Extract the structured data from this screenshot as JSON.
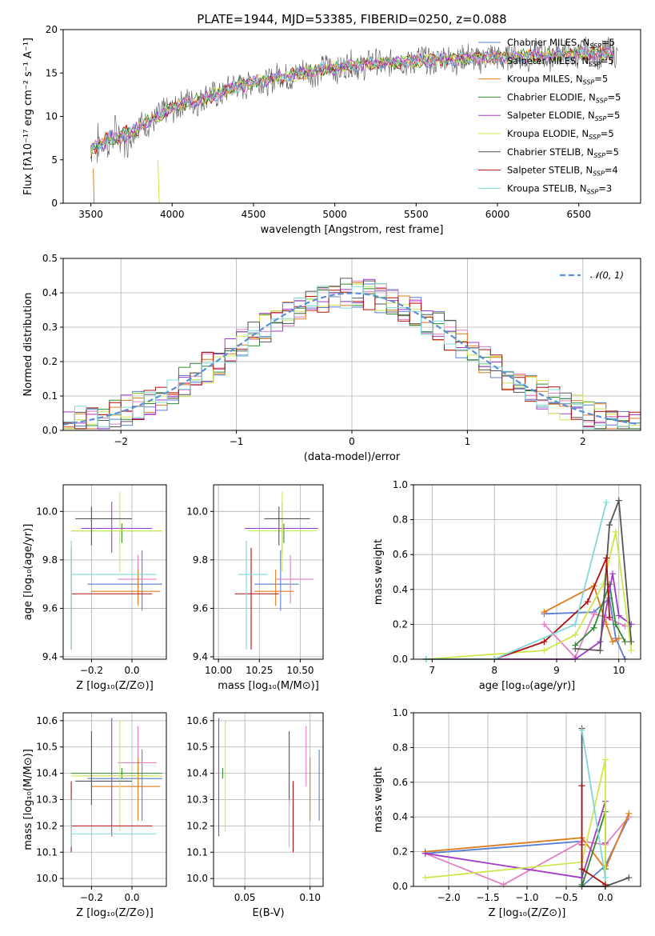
{
  "title": "PLATE=1944, MJD=53385, FIBERID=0250, z=0.088",
  "colors": {
    "Chabrier MILES": "#5a7fd1",
    "Salpeter MILES": "#e57fc4",
    "Kroupa MILES": "#e07b1b",
    "Chabrier ELODIE": "#2e8b2e",
    "Salpeter ELODIE": "#a23bc8",
    "Kroupa ELODIE": "#cde84a",
    "Chabrier STELIB": "#555555",
    "Salpeter STELIB": "#b01010",
    "Kroupa STELIB": "#7fd8d8"
  },
  "legend_entries": [
    {
      "model": "Chabrier MILES",
      "label_prefix": "Chabrier MILES, N",
      "sub": "SSP",
      "suffix": "=5"
    },
    {
      "model": "Salpeter MILES",
      "label_prefix": "Salpeter MILES, N",
      "sub": "SSP",
      "suffix": "=5"
    },
    {
      "model": "Kroupa MILES",
      "label_prefix": "Kroupa MILES, N",
      "sub": "SSP",
      "suffix": "=5"
    },
    {
      "model": "Chabrier ELODIE",
      "label_prefix": "Chabrier ELODIE, N",
      "sub": "SSP",
      "suffix": "=5"
    },
    {
      "model": "Salpeter ELODIE",
      "label_prefix": "Salpeter ELODIE, N",
      "sub": "SSP",
      "suffix": "=5"
    },
    {
      "model": "Kroupa ELODIE",
      "label_prefix": "Kroupa ELODIE, N",
      "sub": "SSP",
      "suffix": "=5"
    },
    {
      "model": "Chabrier STELIB",
      "label_prefix": "Chabrier STELIB, N",
      "sub": "SSP",
      "suffix": "=5"
    },
    {
      "model": "Salpeter STELIB",
      "label_prefix": "Salpeter STELIB, N",
      "sub": "SSP",
      "suffix": "=4"
    },
    {
      "model": "Kroupa STELIB",
      "label_prefix": "Kroupa STELIB, N",
      "sub": "SSP",
      "suffix": "=3"
    }
  ],
  "chart_data": [
    {
      "id": "spectrum",
      "type": "line",
      "xlabel": "wavelength [Angstrom, rest frame]",
      "ylabel": "Flux [fλ10⁻¹⁷ erg cm⁻² s⁻¹ A⁻¹]",
      "xlim": [
        3330,
        6880
      ],
      "ylim": [
        0,
        20
      ],
      "xticks": [
        3500,
        4000,
        4500,
        5000,
        5500,
        6000,
        6500
      ],
      "yticks": [
        0,
        5,
        10,
        15,
        20
      ],
      "legend": "top-right",
      "continuum": [
        [
          3500,
          6.2
        ],
        [
          3560,
          7.0
        ],
        [
          3620,
          7.3
        ],
        [
          3700,
          7.8
        ],
        [
          3780,
          8.5
        ],
        [
          3850,
          9.4
        ],
        [
          3930,
          10.0
        ],
        [
          3990,
          10.9
        ],
        [
          4100,
          11.6
        ],
        [
          4250,
          12.4
        ],
        [
          4400,
          13.5
        ],
        [
          4600,
          14.3
        ],
        [
          4800,
          15.0
        ],
        [
          5000,
          15.6
        ],
        [
          5200,
          16.0
        ],
        [
          5400,
          16.3
        ],
        [
          5700,
          16.6
        ],
        [
          6000,
          16.8
        ],
        [
          6300,
          17.0
        ],
        [
          6600,
          17.3
        ],
        [
          6700,
          17.2
        ]
      ]
    },
    {
      "id": "residual-histogram",
      "type": "histogram",
      "xlabel": "(data-model)/error",
      "ylabel": "Normed distribution",
      "xlim": [
        -2.5,
        2.5
      ],
      "ylim": [
        0,
        0.5
      ],
      "xticks": [
        -2,
        -1,
        0,
        1,
        2
      ],
      "yticks": [
        0.0,
        0.1,
        0.2,
        0.3,
        0.4,
        0.5
      ],
      "bin_width": 0.1,
      "reference": {
        "label": "𝒩(0, 1)",
        "mean": 0,
        "sigma": 1
      },
      "legend": "top-right"
    },
    {
      "id": "age-vs-Z",
      "type": "errorbar",
      "xlabel": "Z [log₁₀(Z/Z⊙)]",
      "ylabel": "age  [log₁₀(age/yr)]",
      "xlim": [
        -0.34,
        0.17
      ],
      "ylim": [
        9.39,
        10.11
      ],
      "xticks": [
        -0.2,
        0.0
      ],
      "yticks": [
        9.4,
        9.6,
        9.8,
        10.0
      ]
    },
    {
      "id": "age-vs-mass",
      "type": "errorbar",
      "xlabel": "mass [log₁₀(M/M⊙)]",
      "ylabel": "",
      "xlim": [
        9.97,
        10.64
      ],
      "ylim": [
        9.39,
        10.11
      ],
      "xticks": [
        10.0,
        10.25,
        10.5
      ],
      "yticks": [
        9.4,
        9.6,
        9.8,
        10.0
      ]
    },
    {
      "id": "mass-weight-vs-age",
      "type": "line",
      "xlabel": "age  [log₁₀(age/yr)]",
      "ylabel": "mass weight",
      "xlim": [
        6.7,
        10.35
      ],
      "ylim": [
        0,
        1
      ],
      "xticks": [
        7,
        8,
        9,
        10
      ],
      "yticks": [
        0.0,
        0.2,
        0.4,
        0.6,
        0.8,
        1.0
      ],
      "series": [
        {
          "model": "Chabrier MILES",
          "points": [
            [
              8.8,
              0.26
            ],
            [
              9.6,
              0.27
            ],
            [
              9.85,
              0.35
            ],
            [
              9.95,
              0.12
            ],
            [
              10.1,
              0.0
            ]
          ]
        },
        {
          "model": "Salpeter MILES",
          "points": [
            [
              8.8,
              0.2
            ],
            [
              9.3,
              0.01
            ],
            [
              9.6,
              0.26
            ],
            [
              9.8,
              0.24
            ],
            [
              10.1,
              0.19
            ]
          ]
        },
        {
          "model": "Kroupa MILES",
          "points": [
            [
              8.8,
              0.27
            ],
            [
              9.6,
              0.42
            ],
            [
              9.8,
              0.2
            ],
            [
              9.9,
              0.1
            ],
            [
              10.0,
              0.12
            ]
          ]
        },
        {
          "model": "Chabrier ELODIE",
          "points": [
            [
              9.3,
              0.08
            ],
            [
              9.6,
              0.18
            ],
            [
              9.85,
              0.43
            ],
            [
              9.95,
              0.2
            ],
            [
              10.1,
              0.1
            ]
          ]
        },
        {
          "model": "Salpeter ELODIE",
          "points": [
            [
              6.9,
              0.0
            ],
            [
              9.3,
              0.0
            ],
            [
              9.7,
              0.1
            ],
            [
              9.9,
              0.49
            ],
            [
              10.0,
              0.25
            ],
            [
              10.2,
              0.2
            ]
          ]
        },
        {
          "model": "Kroupa ELODIE",
          "points": [
            [
              6.9,
              0.0
            ],
            [
              8.8,
              0.05
            ],
            [
              9.3,
              0.14
            ],
            [
              9.75,
              0.43
            ],
            [
              9.95,
              0.73
            ],
            [
              10.2,
              0.05
            ]
          ]
        },
        {
          "model": "Chabrier STELIB",
          "points": [
            [
              9.3,
              0.06
            ],
            [
              9.7,
              0.05
            ],
            [
              9.85,
              0.77
            ],
            [
              10.0,
              0.91
            ],
            [
              10.2,
              0.1
            ]
          ]
        },
        {
          "model": "Salpeter STELIB",
          "points": [
            [
              6.9,
              0.0
            ],
            [
              8.0,
              0.0
            ],
            [
              8.8,
              0.1
            ],
            [
              9.5,
              0.33
            ],
            [
              9.8,
              0.58
            ],
            [
              9.85,
              0.24
            ]
          ]
        },
        {
          "model": "Kroupa STELIB",
          "points": [
            [
              6.9,
              0.0
            ],
            [
              8.0,
              0.0
            ],
            [
              9.3,
              0.2
            ],
            [
              9.8,
              0.9
            ]
          ]
        }
      ]
    },
    {
      "id": "mass-vs-Z",
      "type": "errorbar",
      "xlabel": "Z [log₁₀(Z/Z⊙)]",
      "ylabel": "mass [log₁₀(M/M⊙)]",
      "xlim": [
        -0.34,
        0.17
      ],
      "ylim": [
        9.97,
        10.63
      ],
      "xticks": [
        -0.2,
        0.0
      ],
      "yticks": [
        10.0,
        10.1,
        10.2,
        10.3,
        10.4,
        10.5,
        10.6
      ]
    },
    {
      "id": "mass-vs-EBV",
      "type": "errorbar",
      "xlabel": "E(B-V)",
      "ylabel": "",
      "xlim": [
        0.026,
        0.11
      ],
      "ylim": [
        9.97,
        10.63
      ],
      "xticks": [
        0.05,
        0.1
      ],
      "yticks": [
        10.0,
        10.1,
        10.2,
        10.3,
        10.4,
        10.5,
        10.6
      ]
    },
    {
      "id": "mass-weight-vs-Z",
      "type": "line",
      "xlabel": "Z [log₁₀(Z/Z⊙)]",
      "ylabel": "mass weight",
      "xlim": [
        -2.45,
        0.45
      ],
      "ylim": [
        0,
        1
      ],
      "xticks": [
        -2.0,
        -1.5,
        -1.0,
        -0.5,
        0.0
      ],
      "yticks": [
        0.0,
        0.2,
        0.4,
        0.6,
        0.8,
        1.0
      ],
      "series": [
        {
          "model": "Chabrier MILES",
          "points": [
            [
              -2.3,
              0.19
            ],
            [
              -0.3,
              0.26
            ],
            [
              -0.3,
              0.0
            ],
            [
              0.0,
              0.12
            ],
            [
              0.3,
              0.4
            ]
          ]
        },
        {
          "model": "Salpeter MILES",
          "points": [
            [
              -2.3,
              0.19
            ],
            [
              -1.3,
              0.01
            ],
            [
              -0.3,
              0.26
            ],
            [
              0.0,
              0.24
            ],
            [
              0.3,
              0.4
            ]
          ]
        },
        {
          "model": "Kroupa MILES",
          "points": [
            [
              -2.3,
              0.2
            ],
            [
              -0.3,
              0.28
            ],
            [
              0.0,
              0.1
            ],
            [
              0.3,
              0.42
            ]
          ]
        },
        {
          "model": "Chabrier ELODIE",
          "points": [
            [
              -0.3,
              0.01
            ],
            [
              -0.3,
              0.0
            ],
            [
              0.0,
              0.43
            ],
            [
              0.0,
              0.1
            ]
          ]
        },
        {
          "model": "Salpeter ELODIE",
          "points": [
            [
              -2.3,
              0.19
            ],
            [
              -0.3,
              0.05
            ],
            [
              0.0,
              0.49
            ],
            [
              0.0,
              0.25
            ]
          ]
        },
        {
          "model": "Kroupa ELODIE",
          "points": [
            [
              -2.3,
              0.05
            ],
            [
              -0.3,
              0.14
            ],
            [
              0.0,
              0.73
            ],
            [
              0.0,
              0.0
            ]
          ]
        },
        {
          "model": "Chabrier STELIB",
          "points": [
            [
              -0.3,
              0.91
            ],
            [
              -0.3,
              0.0
            ],
            [
              0.0,
              0.0
            ],
            [
              0.3,
              0.05
            ]
          ]
        },
        {
          "model": "Salpeter STELIB",
          "points": [
            [
              -0.3,
              0.58
            ],
            [
              -0.3,
              0.24
            ],
            [
              -0.3,
              0.1
            ],
            [
              0.0,
              0.01
            ]
          ]
        },
        {
          "model": "Kroupa STELIB",
          "points": [
            [
              -0.3,
              0.9
            ],
            [
              0.0,
              0.05
            ]
          ]
        }
      ]
    }
  ],
  "errorbars": {
    "Chabrier MILES": {
      "Z": [
        0.05,
        -0.22,
        0.15
      ],
      "age": [
        9.7,
        9.59,
        9.84
      ],
      "mass": [
        10.22,
        10.17,
        10.28
      ],
      "ebv": [
        0.107,
        10.22,
        10.17,
        10.28
      ]
    },
    "Salpeter MILES": {
      "Z": [
        0.03,
        -0.07,
        0.12
      ],
      "age": [
        9.72,
        9.62,
        9.82
      ],
      "mass": [
        10.35,
        10.29,
        10.58
      ],
      "ebv": [
        0.097,
        10.29,
        10.58
      ]
    },
    "Kroupa MILES": {
      "Z": [
        0.03,
        -0.2,
        0.14
      ],
      "age": [
        9.67,
        9.61,
        9.76
      ],
      "mass": [
        10.22,
        10.15,
        10.28
      ],
      "ebv": [
        0.1,
        10.15,
        10.28
      ]
    },
    "Chabrier ELODIE": {
      "Z": [
        -0.05,
        -0.3,
        0.15
      ],
      "age": [
        9.92,
        9.87,
        9.95
      ],
      "mass": [
        10.4,
        10.38,
        10.42
      ],
      "ebv": [
        0.033,
        10.38,
        10.42
      ]
    },
    "Salpeter ELODIE": {
      "Z": [
        -0.1,
        -0.25,
        0.1
      ],
      "age": [
        9.93,
        9.83,
        10.04
      ],
      "mass": [
        10.46,
        10.38,
        10.6
      ],
      "ebv": [
        0.03,
        10.38,
        10.6
      ]
    },
    "Kroupa ELODIE": {
      "Z": [
        -0.06,
        -0.3,
        0.15
      ],
      "age": [
        9.92,
        9.75,
        10.08
      ],
      "mass": [
        10.4,
        10.22,
        10.52
      ],
      "ebv": [
        0.035,
        10.22,
        10.52
      ]
    },
    "Chabrier STELIB": {
      "Z": [
        -0.2,
        -0.28,
        0.0
      ],
      "age": [
        9.97,
        9.86,
        10.02
      ],
      "mass": [
        10.38,
        10.25,
        10.43
      ],
      "ebv": [
        0.084,
        10.25,
        10.43
      ]
    },
    "Salpeter STELIB": {
      "Z": [
        -0.3,
        -0.3,
        0.1
      ],
      "age": [
        9.66,
        9.43,
        9.85
      ],
      "mass": [
        10.2,
        10.1,
        10.37
      ],
      "ebv": [
        0.087,
        10.1,
        10.37
      ]
    },
    "Kroupa STELIB": {
      "Z": [
        -0.3,
        -0.3,
        0.12
      ],
      "age": [
        9.74,
        9.43,
        9.88
      ],
      "mass": [
        10.17,
        10.0,
        10.3
      ],
      "ebv": [
        0.084,
        10.0,
        10.3
      ]
    }
  },
  "errorbar_mass": {
    "Chabrier MILES": [
      10.38,
      10.22,
      10.49
    ],
    "Salpeter MILES": [
      10.44,
      10.35,
      10.58
    ],
    "Kroupa MILES": [
      10.35,
      10.22,
      10.46
    ],
    "Chabrier ELODIE": [
      10.4,
      10.38,
      10.42
    ],
    "Salpeter ELODIE": [
      10.39,
      10.16,
      10.61
    ],
    "Kroupa ELODIE": [
      10.39,
      10.18,
      10.6
    ],
    "Chabrier STELIB": [
      10.37,
      10.28,
      10.56
    ],
    "Salpeter STELIB": [
      10.2,
      10.1,
      10.37
    ],
    "Kroupa STELIB": [
      10.17,
      10.12,
      10.3
    ]
  }
}
